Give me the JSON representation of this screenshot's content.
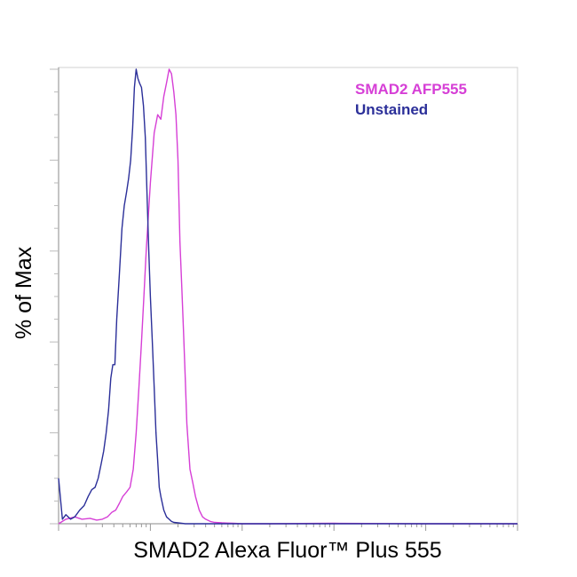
{
  "chart_data": {
    "type": "line",
    "title": "",
    "xlabel": "SMAD2 Alexa Fluor™ Plus 555",
    "ylabel": "% of Max",
    "xscale": "log",
    "xlim": [
      1,
      100000
    ],
    "ylim": [
      0,
      100
    ],
    "grid": false,
    "tick_labels": false,
    "legend_position": "top-right",
    "series": [
      {
        "name": "SMAD2 AFP555",
        "color": "#d63fd6",
        "x": [
          1,
          1.2,
          1.5,
          1.8,
          2.2,
          2.6,
          3,
          3.4,
          3.8,
          4.2,
          4.6,
          5,
          5.5,
          6,
          6.5,
          7,
          7.5,
          8,
          8.5,
          9,
          10,
          11,
          12,
          13,
          14,
          15,
          16,
          17,
          18,
          19,
          20,
          21,
          22,
          23,
          24,
          25,
          27,
          29,
          31,
          34,
          37,
          40,
          45,
          50,
          60,
          80,
          100,
          200,
          1000,
          10000,
          100000
        ],
        "y": [
          0,
          1,
          1.5,
          1,
          1.2,
          0.8,
          1,
          1.5,
          2.5,
          3,
          4.5,
          6,
          7,
          8,
          12,
          20,
          30,
          40,
          50,
          60,
          75,
          86,
          90,
          89,
          94,
          97,
          100,
          99,
          95,
          90,
          80,
          62,
          52,
          42,
          32,
          22,
          12,
          9,
          6,
          3,
          1.5,
          1,
          0.5,
          0.3,
          0.2,
          0.1,
          0,
          0,
          0.1,
          0,
          0
        ]
      },
      {
        "name": "Unstained",
        "color": "#2b2f99",
        "x": [
          1,
          1.1,
          1.2,
          1.35,
          1.5,
          1.7,
          1.9,
          2.1,
          2.3,
          2.5,
          2.7,
          2.9,
          3.1,
          3.3,
          3.5,
          3.7,
          3.9,
          4.1,
          4.3,
          4.6,
          4.9,
          5.2,
          5.5,
          5.8,
          6.1,
          6.4,
          6.7,
          7,
          7.3,
          7.6,
          8,
          8.4,
          8.8,
          9.2,
          9.6,
          10,
          10.5,
          11,
          11.5,
          12,
          12.5,
          13,
          14,
          15,
          16,
          17,
          18,
          20,
          24,
          30,
          50,
          100,
          1000,
          100000
        ],
        "y": [
          10,
          1,
          2,
          1,
          1.5,
          3,
          4,
          6,
          7.5,
          8,
          10,
          13,
          16,
          20,
          25,
          32,
          35,
          35,
          45,
          55,
          65,
          70,
          73,
          76,
          80,
          87,
          96,
          100,
          98,
          97,
          96,
          92,
          85,
          72,
          60,
          50,
          40,
          30,
          20,
          14,
          8,
          6,
          3,
          1.5,
          1,
          0.5,
          0.3,
          0.2,
          0,
          0,
          0,
          0,
          0,
          0
        ]
      }
    ]
  }
}
